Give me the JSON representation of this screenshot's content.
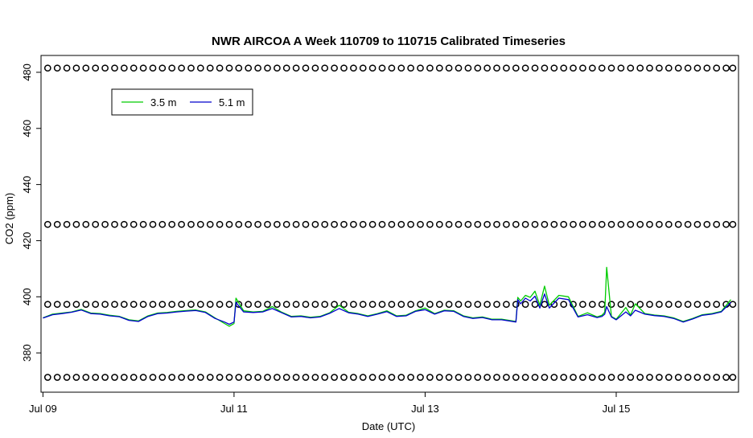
{
  "chart_data": {
    "type": "line",
    "title": "NWR AIRCOA A  Week 110709 to 110715  Calibrated Timeseries",
    "xlabel": "Date (UTC)",
    "ylabel": "CO2 (ppm)",
    "xlim": [
      -0.02,
      7.28
    ],
    "ylim": [
      366,
      486
    ],
    "x_unit": "days after Jul 09 00:00 UTC",
    "x_ticks": [
      {
        "x": 0,
        "label": "Jul 09"
      },
      {
        "x": 2,
        "label": "Jul 11"
      },
      {
        "x": 4,
        "label": "Jul 13"
      },
      {
        "x": 6,
        "label": "Jul 15"
      }
    ],
    "y_ticks": [
      380,
      400,
      420,
      440,
      460,
      480
    ],
    "grid": false,
    "legend": {
      "position": "top-left",
      "entries": [
        {
          "label": "3.5 m",
          "color": "#00cc00"
        },
        {
          "label": "5.1 m",
          "color": "#0000cc"
        }
      ]
    },
    "series": [
      {
        "name": "3.5 m",
        "color": "#00cc00",
        "x": [
          0,
          0.1,
          0.2,
          0.3,
          0.4,
          0.5,
          0.6,
          0.7,
          0.8,
          0.9,
          1.0,
          1.1,
          1.2,
          1.3,
          1.4,
          1.5,
          1.6,
          1.7,
          1.8,
          1.9,
          1.95,
          2.0,
          2.02,
          2.1,
          2.2,
          2.3,
          2.4,
          2.5,
          2.6,
          2.7,
          2.8,
          2.9,
          3.0,
          3.1,
          3.2,
          3.3,
          3.4,
          3.5,
          3.6,
          3.7,
          3.8,
          3.9,
          4.0,
          4.1,
          4.2,
          4.3,
          4.4,
          4.5,
          4.6,
          4.7,
          4.8,
          4.9,
          4.95,
          4.97,
          5.0,
          5.05,
          5.1,
          5.15,
          5.2,
          5.25,
          5.3,
          5.4,
          5.5,
          5.6,
          5.7,
          5.8,
          5.85,
          5.88,
          5.9,
          5.95,
          6.0,
          6.1,
          6.15,
          6.2,
          6.3,
          6.4,
          6.5,
          6.6,
          6.7,
          6.8,
          6.9,
          7.0,
          7.1,
          7.2
        ],
        "y": [
          392.5,
          393.8,
          394.2,
          394.6,
          395.5,
          394.2,
          394.0,
          393.4,
          393.0,
          391.8,
          391.4,
          393.2,
          394.2,
          394.4,
          394.8,
          395.1,
          395.3,
          394.6,
          392.5,
          390.5,
          389.5,
          390.5,
          399.5,
          395.0,
          394.6,
          394.8,
          396.5,
          394.5,
          393.0,
          393.2,
          392.7,
          393.0,
          394.3,
          397.0,
          394.5,
          394.0,
          393.2,
          394.0,
          395.0,
          393.2,
          393.4,
          395.0,
          396.0,
          394.0,
          395.2,
          395.0,
          393.2,
          392.5,
          392.8,
          392.0,
          392.0,
          391.5,
          391.2,
          399.8,
          398.5,
          400.5,
          399.8,
          402.0,
          397.0,
          403.8,
          397.0,
          400.5,
          400.0,
          393.0,
          394.3,
          392.8,
          393.4,
          394.5,
          410.5,
          393.0,
          392.0,
          396.2,
          393.5,
          397.5,
          394.0,
          393.5,
          393.2,
          392.5,
          391.2,
          392.3,
          393.6,
          394.0,
          394.8,
          399.0
        ]
      },
      {
        "name": "5.1 m",
        "color": "#0000cc",
        "x": [
          0,
          0.1,
          0.2,
          0.3,
          0.4,
          0.5,
          0.6,
          0.7,
          0.8,
          0.9,
          1.0,
          1.1,
          1.2,
          1.3,
          1.4,
          1.5,
          1.6,
          1.7,
          1.8,
          1.9,
          1.95,
          2.0,
          2.02,
          2.1,
          2.2,
          2.3,
          2.4,
          2.5,
          2.6,
          2.7,
          2.8,
          2.9,
          3.0,
          3.1,
          3.2,
          3.3,
          3.4,
          3.5,
          3.6,
          3.7,
          3.8,
          3.9,
          4.0,
          4.1,
          4.2,
          4.3,
          4.4,
          4.5,
          4.6,
          4.7,
          4.8,
          4.9,
          4.95,
          4.97,
          5.0,
          5.05,
          5.1,
          5.15,
          5.2,
          5.25,
          5.3,
          5.4,
          5.5,
          5.6,
          5.7,
          5.8,
          5.85,
          5.88,
          5.9,
          5.95,
          6.0,
          6.1,
          6.15,
          6.2,
          6.3,
          6.4,
          6.5,
          6.6,
          6.7,
          6.8,
          6.9,
          7.0,
          7.1,
          7.2
        ],
        "y": [
          392.4,
          393.6,
          394.0,
          394.5,
          395.3,
          394.0,
          393.8,
          393.2,
          392.9,
          391.6,
          391.2,
          393.0,
          394.0,
          394.2,
          394.6,
          394.9,
          395.1,
          394.4,
          392.3,
          391.0,
          390.2,
          391.0,
          398.0,
          394.6,
          394.4,
          394.6,
          395.8,
          394.3,
          392.8,
          393.0,
          392.5,
          392.8,
          394.1,
          395.8,
          394.3,
          393.8,
          393.0,
          393.8,
          394.7,
          393.0,
          393.2,
          394.8,
          395.4,
          393.8,
          395.0,
          394.8,
          393.0,
          392.3,
          392.6,
          391.8,
          391.8,
          391.3,
          391.0,
          399.0,
          397.5,
          399.5,
          398.5,
          400.2,
          396.0,
          401.0,
          396.0,
          399.5,
          399.0,
          392.8,
          393.6,
          392.6,
          393.0,
          393.8,
          396.5,
          392.8,
          391.8,
          394.6,
          393.2,
          395.2,
          393.8,
          393.3,
          393.0,
          392.3,
          391.0,
          392.1,
          393.4,
          393.8,
          394.6,
          398.0
        ]
      },
      {
        "name": "",
        "color": "#000000",
        "marker": "open-circle",
        "x": [
          0.05,
          0.15,
          0.25,
          0.35,
          0.45,
          0.55,
          0.65,
          0.75,
          0.85,
          0.95,
          1.05,
          1.15,
          1.25,
          1.35,
          1.45,
          1.55,
          1.65,
          1.75,
          1.85,
          1.95,
          2.05,
          2.15,
          2.25,
          2.35,
          2.45,
          2.55,
          2.65,
          2.75,
          2.85,
          2.95,
          3.05,
          3.15,
          3.25,
          3.35,
          3.45,
          3.55,
          3.65,
          3.75,
          3.85,
          3.95,
          4.05,
          4.15,
          4.25,
          4.35,
          4.45,
          4.55,
          4.65,
          4.75,
          4.85,
          4.95,
          5.05,
          5.15,
          5.25,
          5.35,
          5.45,
          5.55,
          5.65,
          5.75,
          5.85,
          5.95,
          6.05,
          6.15,
          6.25,
          6.35,
          6.45,
          6.55,
          6.65,
          6.75,
          6.85,
          6.95,
          7.05,
          7.15,
          7.22
        ],
        "y": [
          481.5,
          481.5,
          481.5,
          481.5,
          481.5,
          481.5,
          481.5,
          481.5,
          481.5,
          481.5,
          481.5,
          481.5,
          481.5,
          481.5,
          481.5,
          481.5,
          481.5,
          481.5,
          481.5,
          481.5,
          481.5,
          481.5,
          481.5,
          481.5,
          481.5,
          481.5,
          481.5,
          481.5,
          481.5,
          481.5,
          481.5,
          481.5,
          481.5,
          481.5,
          481.5,
          481.5,
          481.5,
          481.5,
          481.5,
          481.5,
          481.5,
          481.5,
          481.5,
          481.5,
          481.5,
          481.5,
          481.5,
          481.5,
          481.5,
          481.5,
          481.5,
          481.5,
          481.5,
          481.5,
          481.5,
          481.5,
          481.5,
          481.5,
          481.5,
          481.5,
          481.5,
          481.5,
          481.5,
          481.5,
          481.5,
          481.5,
          481.5,
          481.5,
          481.5,
          481.5,
          481.5,
          481.5,
          481.5
        ]
      },
      {
        "name": "",
        "color": "#000000",
        "marker": "open-circle",
        "x": [
          0.05,
          0.15,
          0.25,
          0.35,
          0.45,
          0.55,
          0.65,
          0.75,
          0.85,
          0.95,
          1.05,
          1.15,
          1.25,
          1.35,
          1.45,
          1.55,
          1.65,
          1.75,
          1.85,
          1.95,
          2.05,
          2.15,
          2.25,
          2.35,
          2.45,
          2.55,
          2.65,
          2.75,
          2.85,
          2.95,
          3.05,
          3.15,
          3.25,
          3.35,
          3.45,
          3.55,
          3.65,
          3.75,
          3.85,
          3.95,
          4.05,
          4.15,
          4.25,
          4.35,
          4.45,
          4.55,
          4.65,
          4.75,
          4.85,
          4.95,
          5.05,
          5.15,
          5.25,
          5.35,
          5.45,
          5.55,
          5.65,
          5.75,
          5.85,
          5.95,
          6.05,
          6.15,
          6.25,
          6.35,
          6.45,
          6.55,
          6.65,
          6.75,
          6.85,
          6.95,
          7.05,
          7.15,
          7.22
        ],
        "y": [
          425.8,
          425.8,
          425.8,
          425.8,
          425.8,
          425.8,
          425.8,
          425.8,
          425.8,
          425.8,
          425.8,
          425.8,
          425.8,
          425.8,
          425.8,
          425.8,
          425.8,
          425.8,
          425.8,
          425.8,
          425.8,
          425.8,
          425.8,
          425.8,
          425.8,
          425.8,
          425.8,
          425.8,
          425.8,
          425.8,
          425.8,
          425.8,
          425.8,
          425.8,
          425.8,
          425.8,
          425.8,
          425.8,
          425.8,
          425.8,
          425.8,
          425.8,
          425.8,
          425.8,
          425.8,
          425.8,
          425.8,
          425.8,
          425.8,
          425.8,
          425.8,
          425.8,
          425.8,
          425.8,
          425.8,
          425.8,
          425.8,
          425.8,
          425.8,
          425.8,
          425.8,
          425.8,
          425.8,
          425.8,
          425.8,
          425.8,
          425.8,
          425.8,
          425.8,
          425.8,
          425.8,
          425.8,
          425.8
        ]
      },
      {
        "name": "",
        "color": "#000000",
        "marker": "open-circle",
        "x": [
          0.05,
          0.15,
          0.25,
          0.35,
          0.45,
          0.55,
          0.65,
          0.75,
          0.85,
          0.95,
          1.05,
          1.15,
          1.25,
          1.35,
          1.45,
          1.55,
          1.65,
          1.75,
          1.85,
          1.95,
          2.05,
          2.15,
          2.25,
          2.35,
          2.45,
          2.55,
          2.65,
          2.75,
          2.85,
          2.95,
          3.05,
          3.15,
          3.25,
          3.35,
          3.45,
          3.55,
          3.65,
          3.75,
          3.85,
          3.95,
          4.05,
          4.15,
          4.25,
          4.35,
          4.45,
          4.55,
          4.65,
          4.75,
          4.85,
          4.95,
          5.05,
          5.15,
          5.25,
          5.35,
          5.45,
          5.55,
          5.65,
          5.75,
          5.85,
          5.95,
          6.05,
          6.15,
          6.25,
          6.35,
          6.45,
          6.55,
          6.65,
          6.75,
          6.85,
          6.95,
          7.05,
          7.15,
          7.22
        ],
        "y": [
          397.3,
          397.3,
          397.3,
          397.3,
          397.3,
          397.3,
          397.3,
          397.3,
          397.3,
          397.3,
          397.3,
          397.3,
          397.3,
          397.3,
          397.3,
          397.3,
          397.3,
          397.3,
          397.3,
          397.3,
          397.3,
          397.3,
          397.3,
          397.3,
          397.3,
          397.3,
          397.3,
          397.3,
          397.3,
          397.3,
          397.3,
          397.3,
          397.3,
          397.3,
          397.3,
          397.3,
          397.3,
          397.3,
          397.3,
          397.3,
          397.3,
          397.3,
          397.3,
          397.3,
          397.3,
          397.3,
          397.3,
          397.3,
          397.3,
          397.3,
          397.3,
          397.3,
          397.3,
          397.3,
          397.3,
          397.3,
          397.3,
          397.3,
          397.3,
          397.3,
          397.3,
          397.3,
          397.3,
          397.3,
          397.3,
          397.3,
          397.3,
          397.3,
          397.3,
          397.3,
          397.3,
          397.3,
          397.3
        ]
      },
      {
        "name": "",
        "color": "#000000",
        "marker": "open-circle",
        "x": [
          0.05,
          0.15,
          0.25,
          0.35,
          0.45,
          0.55,
          0.65,
          0.75,
          0.85,
          0.95,
          1.05,
          1.15,
          1.25,
          1.35,
          1.45,
          1.55,
          1.65,
          1.75,
          1.85,
          1.95,
          2.05,
          2.15,
          2.25,
          2.35,
          2.45,
          2.55,
          2.65,
          2.75,
          2.85,
          2.95,
          3.05,
          3.15,
          3.25,
          3.35,
          3.45,
          3.55,
          3.65,
          3.75,
          3.85,
          3.95,
          4.05,
          4.15,
          4.25,
          4.35,
          4.45,
          4.55,
          4.65,
          4.75,
          4.85,
          4.95,
          5.05,
          5.15,
          5.25,
          5.35,
          5.45,
          5.55,
          5.65,
          5.75,
          5.85,
          5.95,
          6.05,
          6.15,
          6.25,
          6.35,
          6.45,
          6.55,
          6.65,
          6.75,
          6.85,
          6.95,
          7.05,
          7.15,
          7.22
        ],
        "y": [
          371.3,
          371.3,
          371.3,
          371.3,
          371.3,
          371.3,
          371.3,
          371.3,
          371.3,
          371.3,
          371.3,
          371.3,
          371.3,
          371.3,
          371.3,
          371.3,
          371.3,
          371.3,
          371.3,
          371.3,
          371.3,
          371.3,
          371.3,
          371.3,
          371.3,
          371.3,
          371.3,
          371.3,
          371.3,
          371.3,
          371.3,
          371.3,
          371.3,
          371.3,
          371.3,
          371.3,
          371.3,
          371.3,
          371.3,
          371.3,
          371.3,
          371.3,
          371.3,
          371.3,
          371.3,
          371.3,
          371.3,
          371.3,
          371.3,
          371.3,
          371.3,
          371.3,
          371.3,
          371.3,
          371.3,
          371.3,
          371.3,
          371.3,
          371.3,
          371.3,
          371.3,
          371.3,
          371.3,
          371.3,
          371.3,
          371.3,
          371.3,
          371.3,
          371.3,
          371.3,
          371.3,
          371.3,
          371.3
        ]
      }
    ]
  }
}
